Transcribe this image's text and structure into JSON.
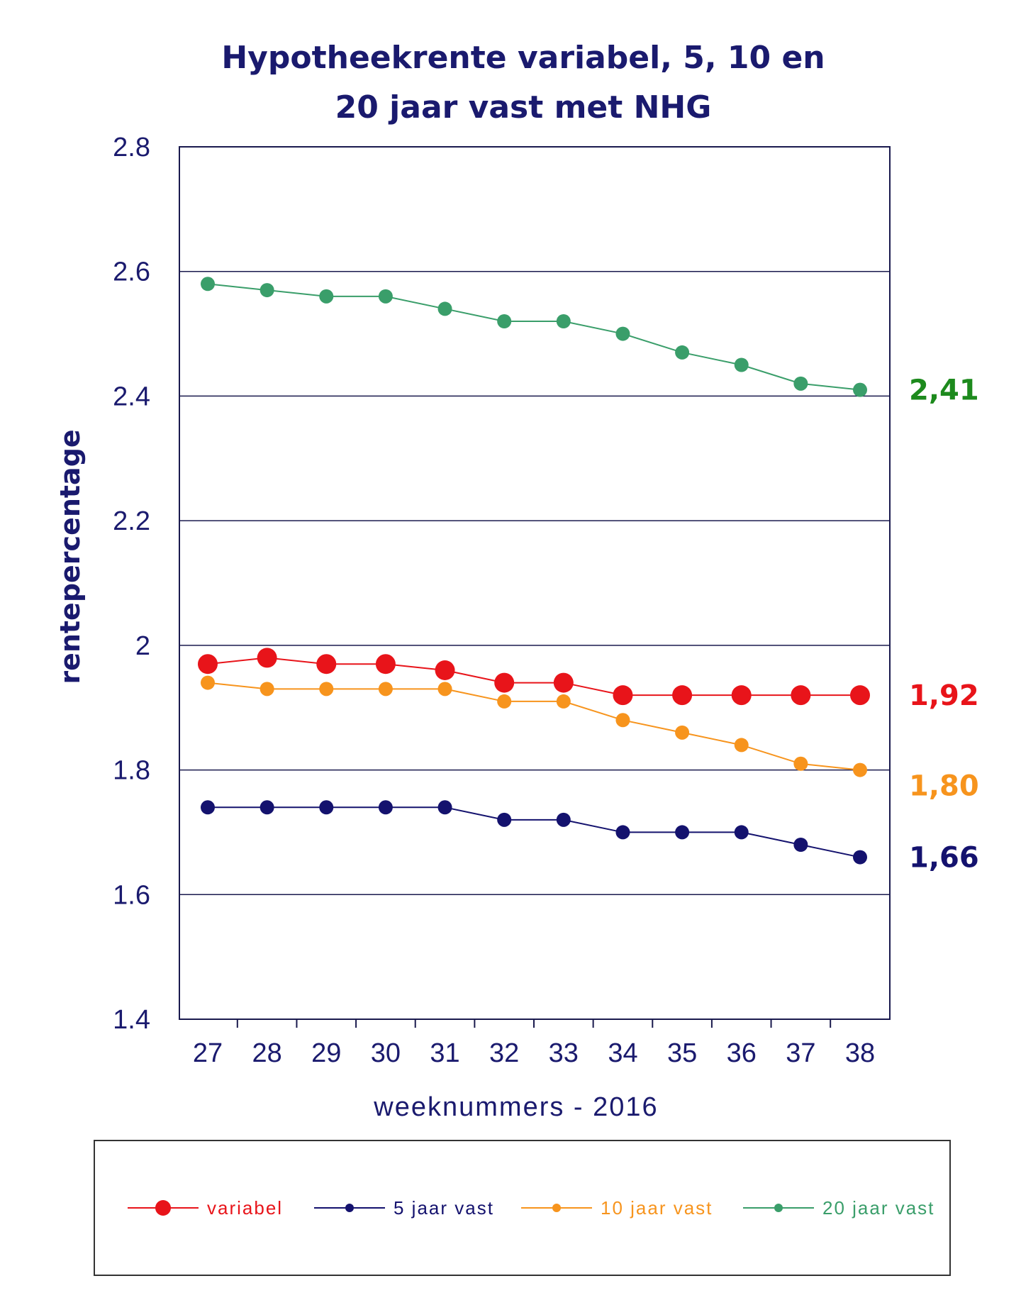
{
  "chart_data": {
    "type": "line",
    "title_lines": [
      "Hypotheekrente variabel, 5, 10 en",
      "20 jaar vast met NHG"
    ],
    "xlabel": "weeknummers - 2016",
    "ylabel": "rentepercentage",
    "ylim": [
      1.4,
      2.8
    ],
    "y_ticks": [
      "2.8",
      "2.6",
      "2.4",
      "2.2",
      "2",
      "1.8",
      "1.6",
      "1.4"
    ],
    "y_tick_values": [
      2.8,
      2.6,
      2.4,
      2.2,
      2.0,
      1.8,
      1.6,
      1.4
    ],
    "gridlines": [
      2.6,
      2.4,
      2.2,
      2.0,
      1.8,
      1.6
    ],
    "categories": [
      "27",
      "28",
      "29",
      "30",
      "31",
      "32",
      "33",
      "34",
      "35",
      "36",
      "37",
      "38"
    ],
    "legend_position": "bottom",
    "series": [
      {
        "name": "variabel",
        "color": "#e8141a",
        "marker": "large",
        "values": [
          1.97,
          1.98,
          1.97,
          1.97,
          1.96,
          1.94,
          1.94,
          1.92,
          1.92,
          1.92,
          1.92,
          1.92
        ],
        "end_label": "1,92",
        "end_label_color": "#e8141a"
      },
      {
        "name": "5 jaar vast",
        "color": "#14126e",
        "marker": "medium",
        "values": [
          1.74,
          1.74,
          1.74,
          1.74,
          1.74,
          1.72,
          1.72,
          1.7,
          1.7,
          1.7,
          1.68,
          1.66
        ],
        "end_label": "1,66",
        "end_label_color": "#14126e"
      },
      {
        "name": "10 jaar vast",
        "color": "#f7941d",
        "marker": "medium",
        "values": [
          1.94,
          1.93,
          1.93,
          1.93,
          1.93,
          1.91,
          1.91,
          1.88,
          1.86,
          1.84,
          1.81,
          1.8
        ],
        "end_label": "1,80",
        "end_label_color": "#f7941d"
      },
      {
        "name": "20 jaar vast",
        "color": "#3a9e6a",
        "marker": "medium",
        "values": [
          2.58,
          2.57,
          2.56,
          2.56,
          2.54,
          2.52,
          2.52,
          2.5,
          2.47,
          2.45,
          2.42,
          2.41
        ],
        "end_label": "2,41",
        "end_label_color": "#1d8a1d"
      }
    ]
  }
}
